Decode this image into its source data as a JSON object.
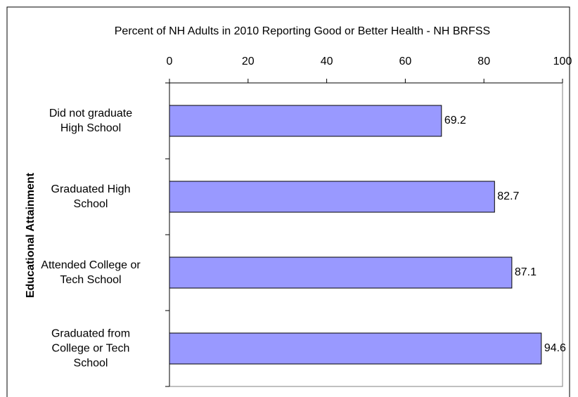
{
  "chart_data": {
    "type": "bar",
    "orientation": "horizontal",
    "title": "Percent of NH Adults in 2010 Reporting Good or Better Health - NH BRFSS",
    "y_label": "Educational Attainment",
    "categories": [
      "Did not graduate\nHigh School",
      "Graduated High\nSchool",
      "Attended College or\nTech School",
      "Graduated from\nCollege or Tech\nSchool"
    ],
    "values": [
      69.2,
      82.7,
      87.1,
      94.6
    ],
    "color": "#9999ff",
    "xlim": [
      0,
      100
    ],
    "xticks": [
      0,
      20,
      40,
      60,
      80,
      100
    ]
  }
}
